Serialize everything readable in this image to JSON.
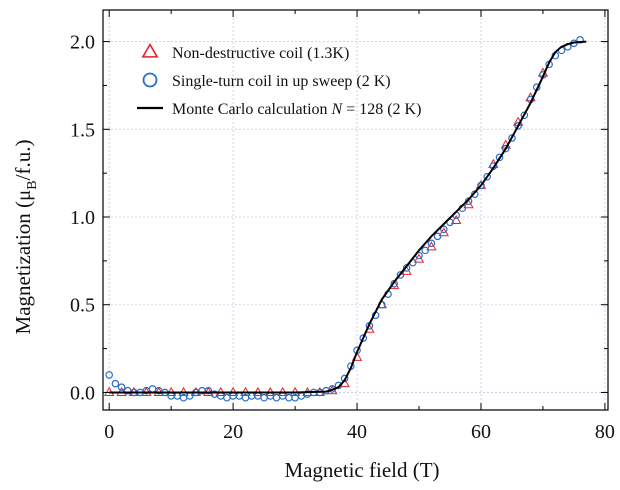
{
  "chart_data": {
    "type": "scatter",
    "title": "",
    "xlabel": "Magnetic field (T)",
    "ylabel_prefix": "Magnetization (",
    "ylabel_mu": "μ",
    "ylabel_sub": "B",
    "ylabel_suffix": "/f.u.)",
    "xlim": [
      -1,
      80.5
    ],
    "ylim": [
      -0.1,
      2.18
    ],
    "xticks": [
      0,
      20,
      40,
      60,
      80
    ],
    "xtick_labels": [
      "0",
      "20",
      "40",
      "60",
      "80"
    ],
    "yticks": [
      0.0,
      0.5,
      1.0,
      1.5,
      2.0
    ],
    "ytick_labels": [
      "0.0",
      "0.5",
      "1.0",
      "1.5",
      "2.0"
    ],
    "grid": true,
    "legend_position": "top-left",
    "series": [
      {
        "name": "Non-destructive coil (1.3K)",
        "marker": "triangle",
        "color": "#e8202a",
        "points": [
          [
            0,
            0
          ],
          [
            2,
            0
          ],
          [
            4,
            0
          ],
          [
            6,
            0
          ],
          [
            8,
            0
          ],
          [
            10,
            0
          ],
          [
            12,
            0
          ],
          [
            14,
            0
          ],
          [
            16,
            0
          ],
          [
            18,
            0
          ],
          [
            20,
            0
          ],
          [
            22,
            0
          ],
          [
            24,
            0
          ],
          [
            26,
            0
          ],
          [
            28,
            0
          ],
          [
            30,
            0
          ],
          [
            32,
            0
          ],
          [
            34,
            0
          ],
          [
            36,
            0.01
          ],
          [
            38,
            0.05
          ],
          [
            40,
            0.2
          ],
          [
            42,
            0.36
          ],
          [
            44,
            0.5
          ],
          [
            46,
            0.61
          ],
          [
            48,
            0.69
          ],
          [
            50,
            0.76
          ],
          [
            52,
            0.83
          ],
          [
            54,
            0.91
          ],
          [
            56,
            0.98
          ],
          [
            58,
            1.07
          ],
          [
            60,
            1.18
          ],
          [
            62,
            1.3
          ],
          [
            64,
            1.41
          ],
          [
            66,
            1.54
          ],
          [
            68,
            1.68
          ],
          [
            70,
            1.82
          ]
        ]
      },
      {
        "name": "Single-turn coil in up sweep (2 K)",
        "marker": "circle",
        "color": "#2a6fc7",
        "points": [
          [
            0,
            0.1
          ],
          [
            1,
            0.05
          ],
          [
            2,
            0.03
          ],
          [
            3,
            0.01
          ],
          [
            4,
            0
          ],
          [
            5,
            0
          ],
          [
            6,
            0.01
          ],
          [
            7,
            0.02
          ],
          [
            8,
            0.01
          ],
          [
            9,
            0
          ],
          [
            10,
            -0.02
          ],
          [
            11,
            -0.02
          ],
          [
            12,
            -0.03
          ],
          [
            13,
            -0.02
          ],
          [
            14,
            0
          ],
          [
            15,
            0.01
          ],
          [
            16,
            0.01
          ],
          [
            17,
            -0.01
          ],
          [
            18,
            -0.02
          ],
          [
            19,
            -0.03
          ],
          [
            20,
            -0.02
          ],
          [
            21,
            -0.02
          ],
          [
            22,
            -0.03
          ],
          [
            23,
            -0.02
          ],
          [
            24,
            -0.02
          ],
          [
            25,
            -0.03
          ],
          [
            26,
            -0.02
          ],
          [
            27,
            -0.03
          ],
          [
            28,
            -0.02
          ],
          [
            29,
            -0.03
          ],
          [
            30,
            -0.03
          ],
          [
            31,
            -0.02
          ],
          [
            32,
            -0.01
          ],
          [
            33,
            0
          ],
          [
            34,
            0
          ],
          [
            35,
            0.01
          ],
          [
            36,
            0.02
          ],
          [
            37,
            0.04
          ],
          [
            38,
            0.08
          ],
          [
            39,
            0.15
          ],
          [
            40,
            0.24
          ],
          [
            41,
            0.31
          ],
          [
            42,
            0.38
          ],
          [
            43,
            0.44
          ],
          [
            44,
            0.5
          ],
          [
            45,
            0.56
          ],
          [
            46,
            0.62
          ],
          [
            47,
            0.67
          ],
          [
            48,
            0.71
          ],
          [
            49,
            0.74
          ],
          [
            50,
            0.78
          ],
          [
            51,
            0.81
          ],
          [
            52,
            0.85
          ],
          [
            53,
            0.89
          ],
          [
            54,
            0.93
          ],
          [
            55,
            0.97
          ],
          [
            56,
            1.01
          ],
          [
            57,
            1.05
          ],
          [
            58,
            1.09
          ],
          [
            59,
            1.13
          ],
          [
            60,
            1.18
          ],
          [
            61,
            1.23
          ],
          [
            62,
            1.29
          ],
          [
            63,
            1.34
          ],
          [
            64,
            1.39
          ],
          [
            65,
            1.45
          ],
          [
            66,
            1.52
          ],
          [
            67,
            1.58
          ],
          [
            68,
            1.67
          ],
          [
            69,
            1.74
          ],
          [
            70,
            1.81
          ],
          [
            71,
            1.87
          ],
          [
            72,
            1.92
          ],
          [
            73,
            1.95
          ],
          [
            74,
            1.97
          ],
          [
            75,
            1.99
          ],
          [
            76,
            2.01
          ]
        ]
      },
      {
        "name": "Monte Carlo calculation",
        "name_italic": "N",
        "name_suffix": " = 128 (2 K)",
        "marker": "line",
        "color": "#000000",
        "points": [
          [
            0,
            0
          ],
          [
            10,
            0
          ],
          [
            20,
            0
          ],
          [
            30,
            0
          ],
          [
            35,
            0.005
          ],
          [
            36,
            0.015
          ],
          [
            37,
            0.03
          ],
          [
            38,
            0.07
          ],
          [
            39,
            0.14
          ],
          [
            40,
            0.23
          ],
          [
            41,
            0.31
          ],
          [
            42,
            0.39
          ],
          [
            43,
            0.46
          ],
          [
            44,
            0.53
          ],
          [
            46,
            0.63
          ],
          [
            48,
            0.72
          ],
          [
            50,
            0.81
          ],
          [
            52,
            0.89
          ],
          [
            54,
            0.96
          ],
          [
            56,
            1.03
          ],
          [
            58,
            1.1
          ],
          [
            60,
            1.18
          ],
          [
            62,
            1.28
          ],
          [
            64,
            1.39
          ],
          [
            66,
            1.52
          ],
          [
            68,
            1.65
          ],
          [
            70,
            1.8
          ],
          [
            71,
            1.88
          ],
          [
            72,
            1.94
          ],
          [
            73,
            1.97
          ],
          [
            74,
            1.985
          ],
          [
            75,
            1.995
          ],
          [
            77,
            2.0
          ]
        ]
      }
    ]
  }
}
